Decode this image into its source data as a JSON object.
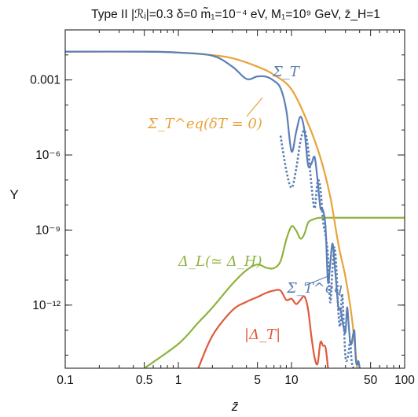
{
  "chart_data": {
    "type": "line",
    "title": "Type II |ℛᵢ|=0.3 δ=0 m̃₁=10⁻⁴ eV, M₁=10⁹ GeV, z̄_H=1",
    "xlabel": "z̄",
    "ylabel": "Y",
    "xscale": "log",
    "yscale": "log",
    "xlim": [
      0.1,
      100
    ],
    "ylim": [
      3e-15,
      0.1
    ],
    "grid": false,
    "x_ticks": [
      {
        "value": 0.1,
        "label": "0.1"
      },
      {
        "value": 0.5,
        "label": "0.5"
      },
      {
        "value": 1,
        "label": "1"
      },
      {
        "value": 5,
        "label": "5"
      },
      {
        "value": 10,
        "label": "10"
      },
      {
        "value": 50,
        "label": "50"
      },
      {
        "value": 100,
        "label": "100"
      }
    ],
    "y_ticks": [
      {
        "value": 0.001,
        "label": "0.001"
      },
      {
        "value": 1e-06,
        "label": "10⁻⁶"
      },
      {
        "value": 1e-09,
        "label": "10⁻⁹"
      },
      {
        "value": 1e-12,
        "label": "10⁻¹²"
      }
    ],
    "series": [
      {
        "name": "Σ_T^eq(δT = 0)",
        "color": "#E8A33C",
        "dash": "solid",
        "x": [
          0.1,
          0.5,
          1,
          2,
          3,
          5,
          7,
          10,
          14,
          18,
          22,
          26,
          30,
          34,
          38
        ],
        "y": [
          0.0135,
          0.0135,
          0.0125,
          0.0098,
          0.0074,
          0.0034,
          0.0016,
          0.00042,
          1.82e-05,
          7.9e-07,
          2.13e-08,
          2.6e-10,
          1.3e-11,
          3.7e-13,
          3.2e-15
        ]
      },
      {
        "name": "Σ_T",
        "color": "#5B7FB5",
        "dash": "solid",
        "x": [
          0.1,
          0.5,
          1,
          2,
          3,
          4,
          5,
          6,
          7,
          8,
          9,
          10,
          11,
          12,
          13,
          14,
          15,
          16,
          17,
          18,
          19,
          20,
          21,
          22,
          23,
          24,
          25,
          26,
          27,
          28,
          29,
          30,
          31,
          32,
          33,
          34,
          35,
          36,
          37,
          38,
          39,
          40
        ],
        "y": [
          0.0135,
          0.0135,
          0.0124,
          0.0093,
          0.0034,
          0.0011,
          0.00138,
          0.00134,
          0.00092,
          0.00047,
          6.1e-05,
          1.4e-06,
          8.4e-06,
          3.4e-05,
          9.8e-06,
          4e-07,
          4.5e-07,
          8.3e-07,
          1e-07,
          7.8e-09,
          6.1e-09,
          1.3e-09,
          8.4e-12,
          4.6e-11,
          2.9e-10,
          4.8e-11,
          5.4e-12,
          7.8e-13,
          7.2e-13,
          2.8e-13,
          1.2e-13,
          8.5e-14,
          8e-13,
          1.7e-13,
          3.3e-14,
          2.9e-14,
          6.5e-14,
          8.9e-14,
          7e-15,
          4.1e-15,
          5.8e-15,
          3.2e-15
        ]
      },
      {
        "name": "Σ_T^eq",
        "color": "#5B7FB5",
        "dash": "dotted",
        "x": [
          8,
          9,
          10,
          11,
          12,
          13,
          14,
          15,
          16,
          17,
          18,
          19,
          20,
          21,
          22,
          23,
          24,
          25,
          26,
          27,
          28,
          29,
          30,
          31,
          32,
          33,
          34,
          35,
          36
        ],
        "y": [
          5.9e-06,
          2.4e-07,
          4.9e-08,
          2.8e-07,
          3.5e-06,
          9.5e-06,
          1.9e-06,
          6.4e-08,
          7.3e-09,
          8.6e-08,
          4.9e-08,
          2.3e-09,
          6e-10,
          9e-11,
          1.3e-12,
          2.7e-11,
          2e-10,
          2.3e-11,
          4.6e-13,
          1.5e-13,
          2.8e-12,
          1.7e-13,
          8.5e-15,
          6.3e-15,
          1.3e-14,
          3.7e-14,
          5.8e-15,
          3.3e-15,
          3.2e-15
        ]
      },
      {
        "name": "Δ_L(≃ Δ_H)",
        "color": "#8DB33E",
        "dash": "solid",
        "x": [
          0.5,
          1,
          1.5,
          2,
          3,
          4,
          5,
          6,
          7,
          8,
          9,
          10,
          11,
          12,
          13,
          14,
          15,
          16,
          17,
          18,
          19,
          20,
          30,
          50,
          100
        ],
        "y": [
          3e-15,
          2.8e-14,
          2e-13,
          8e-13,
          7e-12,
          2.5e-11,
          4.2e-11,
          3.1e-11,
          3e-11,
          5.7e-11,
          4.2e-10,
          1.4e-09,
          9.5e-10,
          4.5e-10,
          7e-10,
          1.95e-09,
          2.5e-09,
          2.8e-09,
          3e-09,
          3.1e-09,
          3.1e-09,
          3.1e-09,
          3.1e-09,
          3.1e-09,
          3.1e-09
        ]
      },
      {
        "name": "|Δ_T|",
        "color": "#E0593A",
        "dash": "solid",
        "x": [
          1.5,
          2,
          3,
          4,
          5,
          6,
          7,
          8,
          9,
          10,
          11,
          12,
          13,
          14,
          15,
          16,
          17,
          18,
          19,
          20,
          21
        ],
        "y": [
          3e-15,
          6e-14,
          6.2e-13,
          1.35e-12,
          2.1e-12,
          3.1e-12,
          3.8e-12,
          3.8e-12,
          1.6e-12,
          1.8e-12,
          1.1e-12,
          1.6e-12,
          2.2e-12,
          7e-13,
          5.5e-14,
          8e-15,
          4.5e-15,
          3.2e-14,
          2.4e-14,
          2e-14,
          3.2e-15
        ]
      }
    ],
    "annotations": [
      {
        "text": "Σ_T",
        "color": "#5B7FB5"
      },
      {
        "text": "Σ_T^eq(δT = 0)",
        "color": "#E8A33C"
      },
      {
        "text": "Δ_L(≃ Δ_H)",
        "color": "#8DB33E"
      },
      {
        "text": "Σ_T^eq",
        "color": "#5B7FB5"
      },
      {
        "text": "|Δ_T|",
        "color": "#E0593A"
      }
    ]
  }
}
